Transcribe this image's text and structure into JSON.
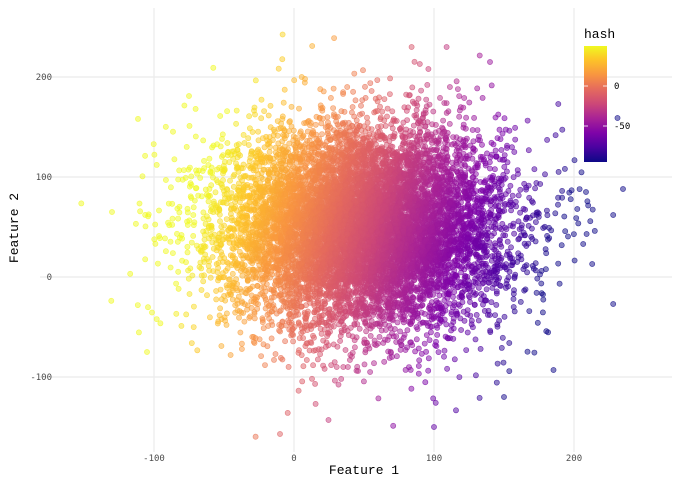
{
  "chart_data": {
    "type": "scatter",
    "title": "",
    "xlabel": "Feature 1",
    "ylabel": "Feature 2",
    "xlim": [
      -146,
      270
    ],
    "ylim": [
      -175,
      270
    ],
    "x_ticks": [
      -100,
      0,
      100,
      200
    ],
    "y_ticks": [
      -100,
      0,
      100,
      200
    ],
    "x_tick_labels": [
      "-100",
      "0",
      "100",
      "200"
    ],
    "y_tick_labels": [
      "-100",
      "0",
      "100",
      "200"
    ],
    "grid": true,
    "color_variable": "hash",
    "colormap": "plasma",
    "color_range": [
      -95,
      50
    ],
    "legend": {
      "title": "hash",
      "position": "top-right",
      "ticks": [
        0,
        -50
      ],
      "tick_labels": [
        "0",
        "-50"
      ]
    },
    "point_alpha": 0.5,
    "n_points_approx": 10000,
    "distribution": {
      "x_mean": 50,
      "x_sd": 50,
      "y_mean": 50,
      "y_sd": 50
    },
    "notable_outliers": [
      {
        "x": -130,
        "y": 65
      },
      {
        "x": -105,
        "y": -75
      },
      {
        "x": -10,
        "y": -157
      },
      {
        "x": 100,
        "y": -150
      },
      {
        "x": 235,
        "y": 88
      },
      {
        "x": 228,
        "y": 62
      },
      {
        "x": 228,
        "y": -27
      },
      {
        "x": 84,
        "y": 230
      },
      {
        "x": 109,
        "y": 230
      },
      {
        "x": 13,
        "y": 231
      },
      {
        "x": -75,
        "y": 181
      },
      {
        "x": 140,
        "y": 215
      },
      {
        "x": 150,
        "y": -120
      },
      {
        "x": 213,
        "y": 13
      }
    ]
  }
}
